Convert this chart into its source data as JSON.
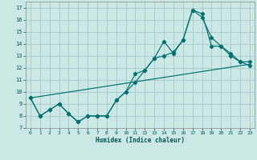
{
  "xlabel": "Humidex (Indice chaleur)",
  "bg_color": "#cce8e5",
  "grid_color": "#aacccc",
  "line_color": "#007070",
  "xlim": [
    -0.5,
    23.5
  ],
  "ylim": [
    7,
    17.5
  ],
  "yticks": [
    7,
    8,
    9,
    10,
    11,
    12,
    13,
    14,
    15,
    16,
    17
  ],
  "xticks": [
    0,
    1,
    2,
    3,
    4,
    5,
    6,
    7,
    8,
    9,
    10,
    11,
    12,
    13,
    14,
    15,
    16,
    17,
    18,
    19,
    20,
    21,
    22,
    23
  ],
  "line1_x": [
    0,
    1,
    2,
    3,
    4,
    5,
    6,
    7,
    8,
    9,
    10,
    11,
    12,
    13,
    14,
    15,
    16,
    17,
    18,
    19,
    20,
    21,
    22,
    23
  ],
  "line1_y": [
    9.5,
    8.0,
    8.5,
    9.0,
    8.2,
    7.5,
    8.0,
    8.0,
    8.0,
    9.3,
    10.0,
    10.8,
    11.8,
    12.8,
    13.0,
    13.3,
    14.3,
    16.8,
    16.5,
    13.8,
    13.8,
    13.2,
    12.5,
    12.5
  ],
  "line2_x": [
    0,
    1,
    2,
    3,
    4,
    5,
    6,
    7,
    8,
    9,
    10,
    11,
    12,
    13,
    14,
    15,
    16,
    17,
    18,
    19,
    20,
    21,
    22,
    23
  ],
  "line2_y": [
    9.5,
    8.0,
    8.5,
    9.0,
    8.2,
    7.5,
    8.0,
    8.0,
    8.0,
    9.3,
    10.0,
    11.5,
    11.8,
    12.8,
    14.2,
    13.2,
    14.3,
    16.8,
    16.2,
    14.5,
    13.8,
    13.0,
    12.5,
    12.2
  ],
  "line3_x": [
    0,
    23
  ],
  "line3_y": [
    9.5,
    12.3
  ]
}
